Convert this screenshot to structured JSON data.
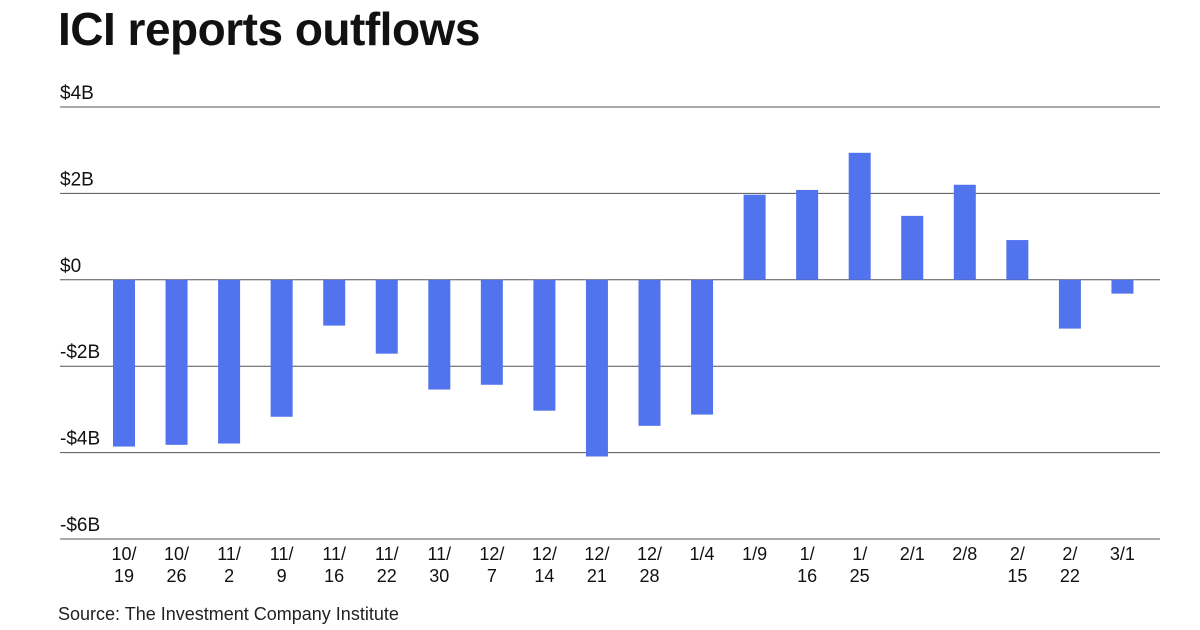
{
  "chart_data": {
    "type": "bar",
    "title": "ICI reports outflows",
    "source": "Source: The Investment Company Institute",
    "xlabel": "",
    "ylabel": "",
    "ylim": [
      -6,
      4
    ],
    "yticks": [
      4,
      2,
      0,
      -2,
      -4,
      -6
    ],
    "ytick_labels": [
      "$4B",
      "$2B",
      "$0",
      "-$2B",
      "-$4B",
      "-$6B"
    ],
    "grid": true,
    "bar_color": "#5173EE",
    "categories": [
      [
        "10/",
        "19"
      ],
      [
        "10/",
        "26"
      ],
      [
        "11/",
        "2"
      ],
      [
        "11/",
        "9"
      ],
      [
        "11/",
        "16"
      ],
      [
        "11/",
        "22"
      ],
      [
        "11/",
        "30"
      ],
      [
        "12/",
        "7"
      ],
      [
        "12/",
        "14"
      ],
      [
        "12/",
        "21"
      ],
      [
        "12/",
        "28"
      ],
      [
        "1/4"
      ],
      [
        "1/9"
      ],
      [
        "1/",
        "16"
      ],
      [
        "1/",
        "25"
      ],
      [
        "2/1"
      ],
      [
        "2/8"
      ],
      [
        "2/",
        "15"
      ],
      [
        "2/",
        "22"
      ],
      [
        "3/1"
      ]
    ],
    "values": [
      -3.86,
      -3.82,
      -3.79,
      -3.17,
      -1.06,
      -1.71,
      -2.54,
      -2.43,
      -3.03,
      -4.09,
      -3.38,
      -3.12,
      1.97,
      2.08,
      2.94,
      1.48,
      2.2,
      0.92,
      -1.13,
      -0.32
    ]
  }
}
